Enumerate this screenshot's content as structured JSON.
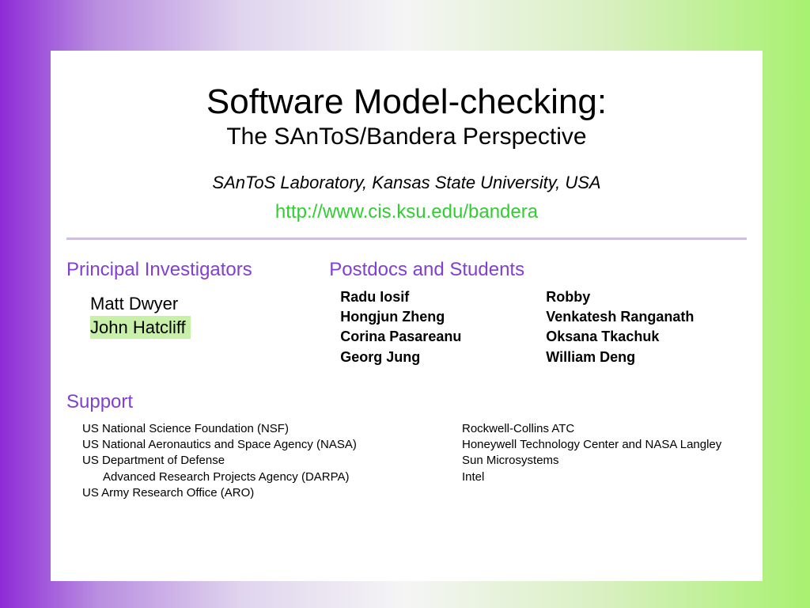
{
  "title": "Software Model-checking:",
  "subtitle": "The SAnToS/Bandera Perspective",
  "affiliation": "SAnToS Laboratory, Kansas State University, USA",
  "url": "http://www.cis.ksu.edu/bandera",
  "colors": {
    "heading": "#8040d0",
    "url": "#33cc33",
    "divider": "#d0c0e0",
    "highlight": "#c8f0a8",
    "gradient_left": "#8e2bd6",
    "gradient_right": "#a8f070",
    "content_bg": "#ffffff"
  },
  "pi": {
    "heading": "Principal Investigators",
    "names": [
      "Matt Dwyer",
      "John Hatcliff"
    ],
    "highlighted": "John Hatcliff"
  },
  "postdocs": {
    "heading": "Postdocs and Students",
    "col1": [
      "Radu Iosif",
      "Hongjun Zheng",
      "Corina Pasareanu",
      "Georg Jung"
    ],
    "col2": [
      "Robby",
      "Venkatesh Ranganath",
      "Oksana Tkachuk",
      "William Deng"
    ]
  },
  "support": {
    "heading": "Support",
    "col1": [
      "US National Science Foundation (NSF)",
      "US National Aeronautics and Space Agency (NASA)",
      "US Department of Defense",
      "Advanced Research Projects Agency (DARPA)",
      "US Army Research Office (ARO)"
    ],
    "col1_indent": [
      false,
      false,
      false,
      true,
      false
    ],
    "col2": [
      "Rockwell-Collins ATC",
      "Honeywell Technology Center and NASA Langley",
      "Sun Microsystems",
      "Intel"
    ]
  }
}
